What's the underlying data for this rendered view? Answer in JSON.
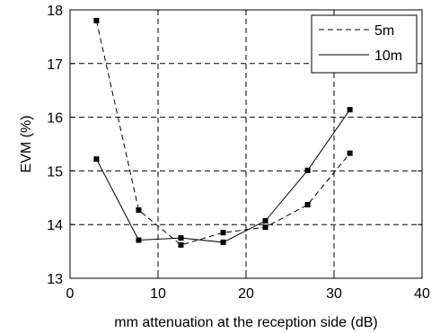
{
  "chart_data": {
    "type": "line",
    "xlabel": "mm attenuation at the reception side (dB)",
    "ylabel": "EVM (%)",
    "xlim": [
      0,
      40
    ],
    "ylim": [
      13,
      18
    ],
    "xticks": [
      0,
      10,
      20,
      30,
      40
    ],
    "yticks": [
      13,
      14,
      15,
      16,
      17,
      18
    ],
    "x_tick_labels": [
      "0",
      "10",
      "20",
      "30",
      "40"
    ],
    "y_tick_labels": [
      "13",
      "14",
      "15",
      "16",
      "17",
      "18"
    ],
    "grid": true,
    "legend_position": "top-right",
    "series": [
      {
        "name": "5m",
        "line_style": "dashed",
        "marker": "square",
        "color": "#000000",
        "x": [
          3,
          7.8,
          12.6,
          17.4,
          22.2,
          27,
          31.8
        ],
        "y": [
          17.8,
          14.27,
          13.62,
          13.85,
          13.95,
          14.37,
          15.33
        ]
      },
      {
        "name": "10m",
        "line_style": "solid",
        "marker": "square",
        "color": "#000000",
        "x": [
          3,
          7.8,
          12.6,
          17.4,
          22.2,
          27,
          31.8
        ],
        "y": [
          15.22,
          13.71,
          13.75,
          13.67,
          14.07,
          15.01,
          16.14
        ]
      }
    ]
  }
}
